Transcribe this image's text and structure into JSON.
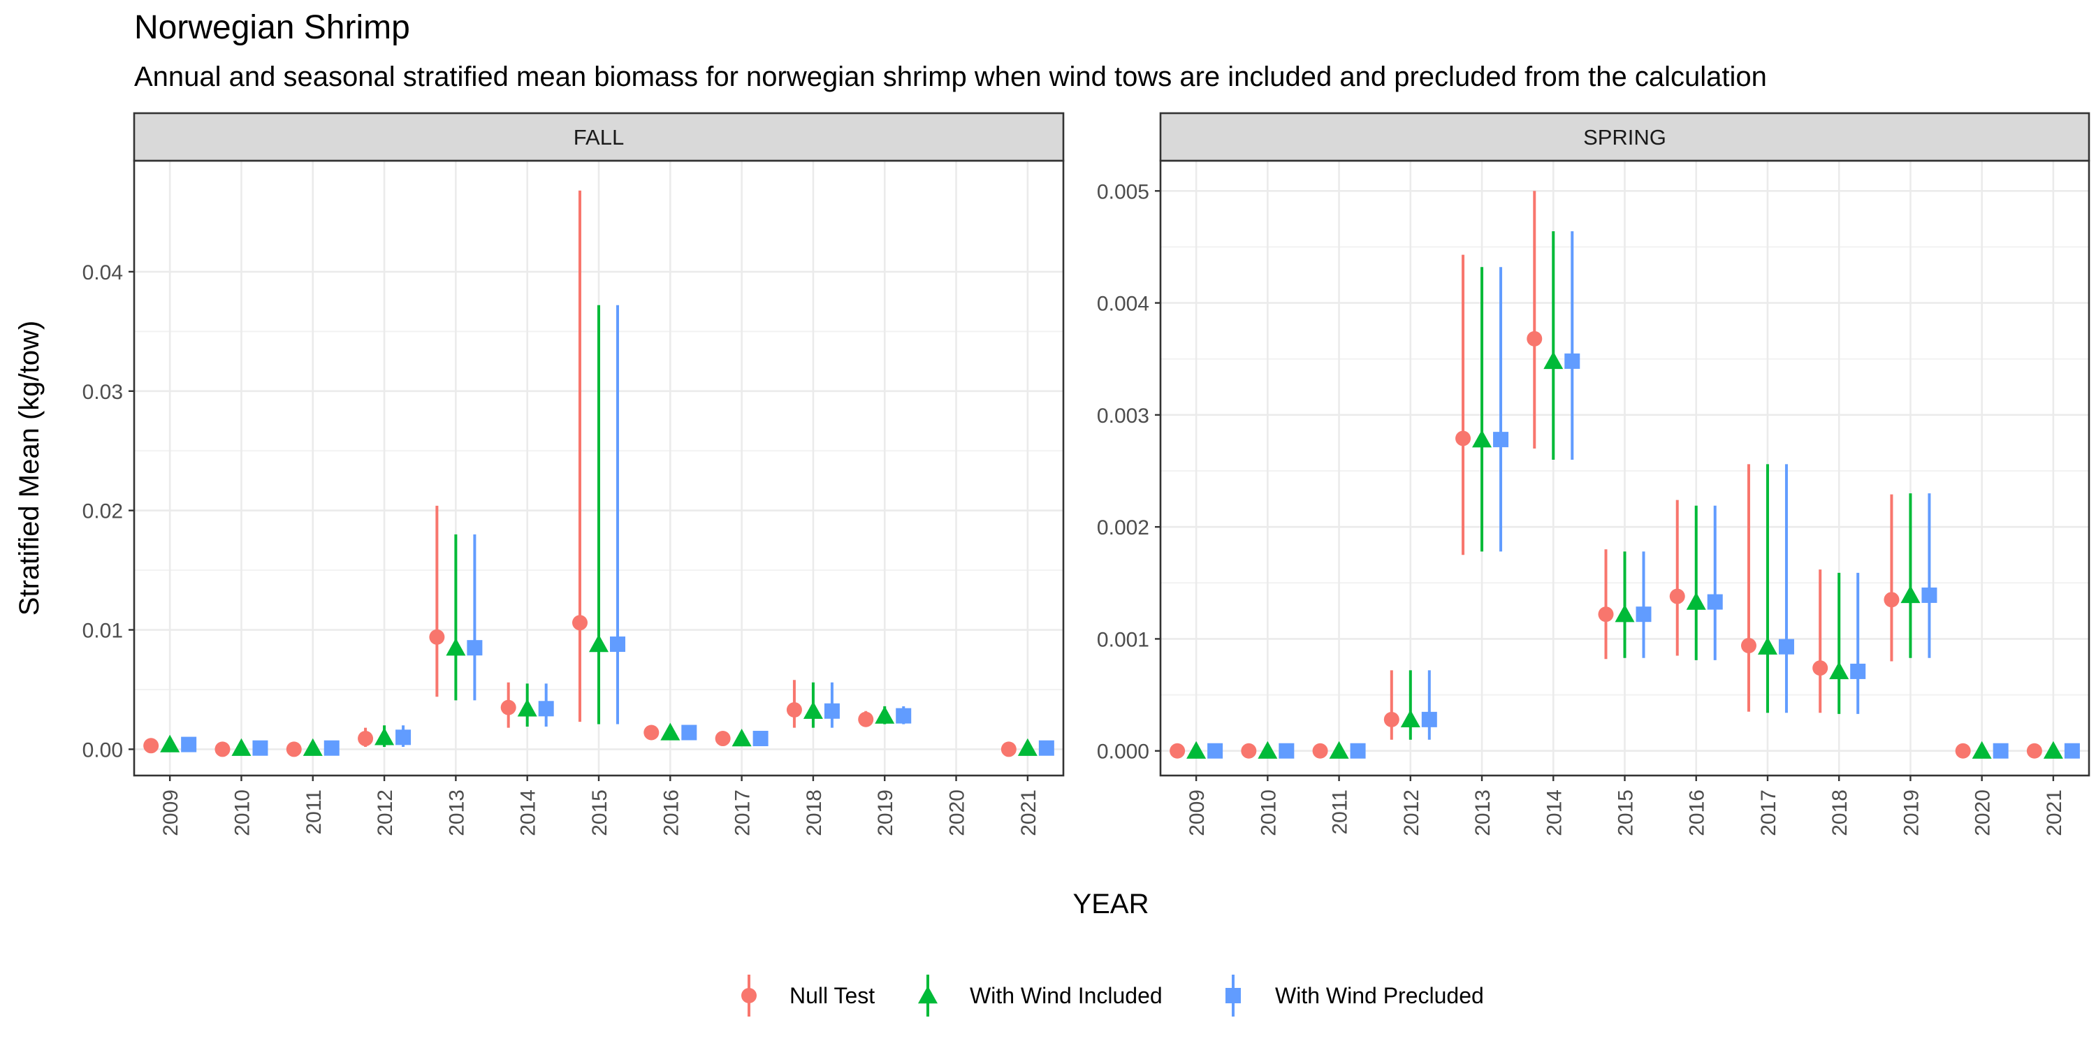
{
  "chart_data": {
    "type": "scatter",
    "title": "Norwegian Shrimp",
    "subtitle": "Annual and seasonal stratified mean biomass for norwegian shrimp when wind tows are included and precluded from the calculation",
    "xlabel": "YEAR",
    "ylabel": "Stratified Mean (kg/tow)",
    "categories": [
      "2009",
      "2010",
      "2011",
      "2012",
      "2013",
      "2014",
      "2015",
      "2016",
      "2017",
      "2018",
      "2019",
      "2020",
      "2021"
    ],
    "legend_position": "bottom",
    "grid": true,
    "series_styles": [
      {
        "name": "Null Test",
        "color": "#F8766D",
        "shape": "circle"
      },
      {
        "name": "With Wind Included",
        "color": "#00BA38",
        "shape": "triangle"
      },
      {
        "name": "With Wind Precluded",
        "color": "#619CFF",
        "shape": "square"
      }
    ],
    "panels": [
      {
        "label": "FALL",
        "ylim": [
          -0.0022,
          0.0493
        ],
        "yticks": [
          0.0,
          0.01,
          0.02,
          0.03,
          0.04
        ],
        "ytick_labels": [
          "0.00",
          "0.01",
          "0.02",
          "0.03",
          "0.04"
        ],
        "series": [
          {
            "name": "Null Test",
            "points": [
              {
                "x": "2009",
                "y": 0.0003,
                "lo": 0.0003,
                "hi": 0.0003
              },
              {
                "x": "2010",
                "y": 0.0,
                "lo": 0.0,
                "hi": 0.0
              },
              {
                "x": "2011",
                "y": 0.0,
                "lo": 0.0,
                "hi": 0.0
              },
              {
                "x": "2012",
                "y": 0.0009,
                "lo": 0.0002,
                "hi": 0.0018
              },
              {
                "x": "2013",
                "y": 0.0094,
                "lo": 0.0044,
                "hi": 0.0204
              },
              {
                "x": "2014",
                "y": 0.0035,
                "lo": 0.0018,
                "hi": 0.0056
              },
              {
                "x": "2015",
                "y": 0.0106,
                "lo": 0.0023,
                "hi": 0.0468
              },
              {
                "x": "2016",
                "y": 0.0014,
                "lo": 0.0009,
                "hi": 0.002
              },
              {
                "x": "2017",
                "y": 0.0009,
                "lo": 0.0004,
                "hi": 0.0015
              },
              {
                "x": "2018",
                "y": 0.0033,
                "lo": 0.0018,
                "hi": 0.0058
              },
              {
                "x": "2019",
                "y": 0.0025,
                "lo": 0.002,
                "hi": 0.0032
              },
              {
                "x": "2021",
                "y": 0.0,
                "lo": 0.0,
                "hi": 0.0
              }
            ]
          },
          {
            "name": "With Wind Included",
            "points": [
              {
                "x": "2009",
                "y": 0.0004,
                "lo": 0.0004,
                "hi": 0.0004
              },
              {
                "x": "2010",
                "y": 0.0001,
                "lo": 0.0001,
                "hi": 0.0001
              },
              {
                "x": "2011",
                "y": 0.0001,
                "lo": 0.0001,
                "hi": 0.0001
              },
              {
                "x": "2012",
                "y": 0.001,
                "lo": 0.0002,
                "hi": 0.002
              },
              {
                "x": "2013",
                "y": 0.0085,
                "lo": 0.0041,
                "hi": 0.018
              },
              {
                "x": "2014",
                "y": 0.0034,
                "lo": 0.0019,
                "hi": 0.0055
              },
              {
                "x": "2015",
                "y": 0.0088,
                "lo": 0.0021,
                "hi": 0.0372
              },
              {
                "x": "2016",
                "y": 0.0014,
                "lo": 0.0009,
                "hi": 0.002
              },
              {
                "x": "2017",
                "y": 0.0009,
                "lo": 0.0004,
                "hi": 0.0014
              },
              {
                "x": "2018",
                "y": 0.0032,
                "lo": 0.0018,
                "hi": 0.0056
              },
              {
                "x": "2019",
                "y": 0.0028,
                "lo": 0.0021,
                "hi": 0.0036
              },
              {
                "x": "2021",
                "y": 0.0001,
                "lo": 0.0001,
                "hi": 0.0001
              }
            ]
          },
          {
            "name": "With Wind Precluded",
            "points": [
              {
                "x": "2009",
                "y": 0.0004,
                "lo": 0.0004,
                "hi": 0.0004
              },
              {
                "x": "2010",
                "y": 0.0001,
                "lo": 0.0001,
                "hi": 0.0001
              },
              {
                "x": "2011",
                "y": 0.0001,
                "lo": 0.0001,
                "hi": 0.0001
              },
              {
                "x": "2012",
                "y": 0.001,
                "lo": 0.0002,
                "hi": 0.002
              },
              {
                "x": "2013",
                "y": 0.0085,
                "lo": 0.0041,
                "hi": 0.018
              },
              {
                "x": "2014",
                "y": 0.0034,
                "lo": 0.0019,
                "hi": 0.0055
              },
              {
                "x": "2015",
                "y": 0.0088,
                "lo": 0.0021,
                "hi": 0.0372
              },
              {
                "x": "2016",
                "y": 0.0014,
                "lo": 0.0009,
                "hi": 0.002
              },
              {
                "x": "2017",
                "y": 0.0009,
                "lo": 0.0004,
                "hi": 0.0014
              },
              {
                "x": "2018",
                "y": 0.0032,
                "lo": 0.0018,
                "hi": 0.0056
              },
              {
                "x": "2019",
                "y": 0.0028,
                "lo": 0.0021,
                "hi": 0.0036
              },
              {
                "x": "2021",
                "y": 0.0001,
                "lo": 0.0001,
                "hi": 0.0001
              }
            ]
          }
        ]
      },
      {
        "label": "SPRING",
        "ylim": [
          -0.00022,
          0.00527
        ],
        "yticks": [
          0.0,
          0.001,
          0.002,
          0.003,
          0.004,
          0.005
        ],
        "ytick_labels": [
          "0.000",
          "0.001",
          "0.002",
          "0.003",
          "0.004",
          "0.005"
        ],
        "series": [
          {
            "name": "Null Test",
            "points": [
              {
                "x": "2009",
                "y": 0.0,
                "lo": 0.0,
                "hi": 0.0
              },
              {
                "x": "2010",
                "y": 0.0,
                "lo": 0.0,
                "hi": 0.0
              },
              {
                "x": "2011",
                "y": 0.0,
                "lo": 0.0,
                "hi": 0.0
              },
              {
                "x": "2012",
                "y": 0.00028,
                "lo": 0.0001,
                "hi": 0.00072
              },
              {
                "x": "2013",
                "y": 0.00279,
                "lo": 0.00175,
                "hi": 0.00443
              },
              {
                "x": "2014",
                "y": 0.00368,
                "lo": 0.0027,
                "hi": 0.005
              },
              {
                "x": "2015",
                "y": 0.00122,
                "lo": 0.00082,
                "hi": 0.0018
              },
              {
                "x": "2016",
                "y": 0.00138,
                "lo": 0.00085,
                "hi": 0.00224
              },
              {
                "x": "2017",
                "y": 0.00094,
                "lo": 0.00035,
                "hi": 0.00256
              },
              {
                "x": "2018",
                "y": 0.00074,
                "lo": 0.00034,
                "hi": 0.00162
              },
              {
                "x": "2019",
                "y": 0.00135,
                "lo": 0.0008,
                "hi": 0.00229
              },
              {
                "x": "2020",
                "y": 0.0,
                "lo": 0.0,
                "hi": 0.0
              },
              {
                "x": "2021",
                "y": 0.0,
                "lo": 0.0,
                "hi": 0.0
              }
            ]
          },
          {
            "name": "With Wind Included",
            "points": [
              {
                "x": "2009",
                "y": 0.0,
                "lo": 0.0,
                "hi": 0.0
              },
              {
                "x": "2010",
                "y": 0.0,
                "lo": 0.0,
                "hi": 0.0
              },
              {
                "x": "2011",
                "y": 0.0,
                "lo": 0.0,
                "hi": 0.0
              },
              {
                "x": "2012",
                "y": 0.00028,
                "lo": 0.0001,
                "hi": 0.00072
              },
              {
                "x": "2013",
                "y": 0.00278,
                "lo": 0.00178,
                "hi": 0.00432
              },
              {
                "x": "2014",
                "y": 0.00348,
                "lo": 0.0026,
                "hi": 0.00464
              },
              {
                "x": "2015",
                "y": 0.00122,
                "lo": 0.00083,
                "hi": 0.00178
              },
              {
                "x": "2016",
                "y": 0.00133,
                "lo": 0.00081,
                "hi": 0.00219
              },
              {
                "x": "2017",
                "y": 0.00093,
                "lo": 0.00034,
                "hi": 0.00256
              },
              {
                "x": "2018",
                "y": 0.00071,
                "lo": 0.00033,
                "hi": 0.00159
              },
              {
                "x": "2019",
                "y": 0.00139,
                "lo": 0.00083,
                "hi": 0.0023
              },
              {
                "x": "2020",
                "y": 0.0,
                "lo": 0.0,
                "hi": 0.0
              },
              {
                "x": "2021",
                "y": 0.0,
                "lo": 0.0,
                "hi": 0.0
              }
            ]
          },
          {
            "name": "With Wind Precluded",
            "points": [
              {
                "x": "2009",
                "y": 0.0,
                "lo": 0.0,
                "hi": 0.0
              },
              {
                "x": "2010",
                "y": 0.0,
                "lo": 0.0,
                "hi": 0.0
              },
              {
                "x": "2011",
                "y": 0.0,
                "lo": 0.0,
                "hi": 0.0
              },
              {
                "x": "2012",
                "y": 0.00028,
                "lo": 0.0001,
                "hi": 0.00072
              },
              {
                "x": "2013",
                "y": 0.00278,
                "lo": 0.00178,
                "hi": 0.00432
              },
              {
                "x": "2014",
                "y": 0.00348,
                "lo": 0.0026,
                "hi": 0.00464
              },
              {
                "x": "2015",
                "y": 0.00122,
                "lo": 0.00083,
                "hi": 0.00178
              },
              {
                "x": "2016",
                "y": 0.00133,
                "lo": 0.00081,
                "hi": 0.00219
              },
              {
                "x": "2017",
                "y": 0.00093,
                "lo": 0.00034,
                "hi": 0.00256
              },
              {
                "x": "2018",
                "y": 0.00071,
                "lo": 0.00033,
                "hi": 0.00159
              },
              {
                "x": "2019",
                "y": 0.00139,
                "lo": 0.00083,
                "hi": 0.0023
              },
              {
                "x": "2020",
                "y": 0.0,
                "lo": 0.0,
                "hi": 0.0
              },
              {
                "x": "2021",
                "y": 0.0,
                "lo": 0.0,
                "hi": 0.0
              }
            ]
          }
        ]
      }
    ]
  }
}
